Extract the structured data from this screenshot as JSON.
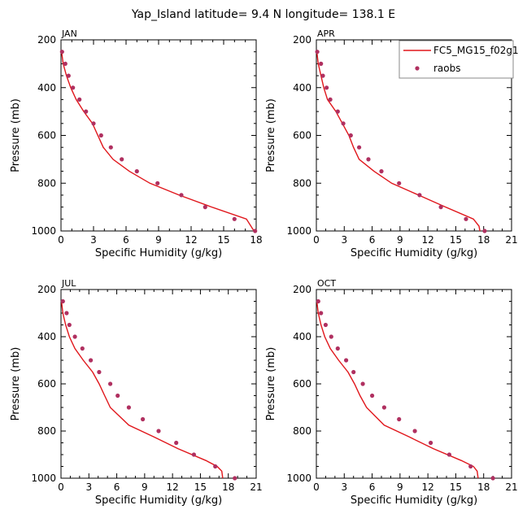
{
  "figure": {
    "title": "Yap_Island  latitude= 9.4 N longitude= 138.1 E"
  },
  "legend": {
    "placement": "top-right",
    "model_label": "FC5_MG15_f02g1",
    "obs_label": "raobs"
  },
  "colors": {
    "model": "#e0161b",
    "obs": "#b03060",
    "axis": "#000000"
  },
  "chart_data": [
    {
      "type": "line",
      "title": "JAN",
      "xlabel": "Specific Humidity (g/kg)",
      "ylabel": "Pressure (mb)",
      "xlim": [
        0,
        18
      ],
      "xticks": [
        0,
        3,
        6,
        9,
        12,
        15,
        18
      ],
      "ylim": [
        1000,
        200
      ],
      "yticks": [
        200,
        400,
        600,
        800,
        1000
      ],
      "series": [
        {
          "values": [
            [
              0.05,
              250
            ],
            [
              0.2,
              300
            ],
            [
              0.5,
              350
            ],
            [
              0.9,
              400
            ],
            [
              1.4,
              450
            ],
            [
              2.1,
              500
            ],
            [
              2.9,
              550
            ],
            [
              3.4,
              600
            ],
            [
              3.9,
              650
            ],
            [
              4.8,
              700
            ],
            [
              6.3,
              750
            ],
            [
              8.2,
              800
            ],
            [
              10.9,
              850
            ],
            [
              13.9,
              900
            ],
            [
              17.1,
              950
            ],
            [
              17.8,
              1000
            ]
          ]
        },
        {
          "values": [
            [
              0.1,
              250
            ],
            [
              0.4,
              300
            ],
            [
              0.7,
              350
            ],
            [
              1.1,
              400
            ],
            [
              1.7,
              450
            ],
            [
              2.3,
              500
            ],
            [
              3.0,
              550
            ],
            [
              3.7,
              600
            ],
            [
              4.6,
              650
            ],
            [
              5.6,
              700
            ],
            [
              7.0,
              750
            ],
            [
              8.9,
              800
            ],
            [
              11.1,
              850
            ],
            [
              13.3,
              900
            ],
            [
              16.0,
              950
            ],
            [
              17.9,
              1000
            ]
          ]
        }
      ]
    },
    {
      "type": "line",
      "title": "APR",
      "xlabel": "Specific Humidity (g/kg)",
      "ylabel": "Pressure (mb)",
      "xlim": [
        0,
        21
      ],
      "xticks": [
        0,
        3,
        6,
        9,
        12,
        15,
        18,
        21
      ],
      "ylim": [
        1000,
        200
      ],
      "yticks": [
        200,
        400,
        600,
        800,
        1000
      ],
      "series": [
        {
          "values": [
            [
              0.05,
              250
            ],
            [
              0.2,
              300
            ],
            [
              0.5,
              350
            ],
            [
              0.8,
              400
            ],
            [
              1.2,
              450
            ],
            [
              2.1,
              500
            ],
            [
              2.8,
              550
            ],
            [
              3.5,
              600
            ],
            [
              4.0,
              650
            ],
            [
              4.6,
              700
            ],
            [
              6.2,
              750
            ],
            [
              8.1,
              800
            ],
            [
              11.0,
              850
            ],
            [
              13.9,
              900
            ],
            [
              16.9,
              950
            ],
            [
              17.5,
              980
            ],
            [
              17.6,
              1000
            ]
          ]
        },
        {
          "values": [
            [
              0.1,
              250
            ],
            [
              0.5,
              300
            ],
            [
              0.7,
              350
            ],
            [
              1.1,
              400
            ],
            [
              1.5,
              450
            ],
            [
              2.3,
              500
            ],
            [
              2.9,
              550
            ],
            [
              3.7,
              600
            ],
            [
              4.6,
              650
            ],
            [
              5.6,
              700
            ],
            [
              7.0,
              750
            ],
            [
              8.9,
              800
            ],
            [
              11.1,
              850
            ],
            [
              13.4,
              900
            ],
            [
              16.1,
              950
            ],
            [
              18.1,
              1000
            ]
          ]
        }
      ]
    },
    {
      "type": "line",
      "title": "JUL",
      "xlabel": "Specific Humidity (g/kg)",
      "ylabel": "Pressure (mb)",
      "xlim": [
        0,
        21
      ],
      "xticks": [
        0,
        3,
        6,
        9,
        12,
        15,
        18,
        21
      ],
      "ylim": [
        1000,
        200
      ],
      "yticks": [
        200,
        400,
        600,
        800,
        1000
      ],
      "series": [
        {
          "values": [
            [
              0.05,
              250
            ],
            [
              0.2,
              300
            ],
            [
              0.5,
              350
            ],
            [
              0.9,
              400
            ],
            [
              1.5,
              450
            ],
            [
              2.4,
              500
            ],
            [
              3.4,
              550
            ],
            [
              4.1,
              600
            ],
            [
              4.7,
              650
            ],
            [
              5.3,
              700
            ],
            [
              7.3,
              775
            ],
            [
              10.0,
              825
            ],
            [
              12.6,
              875
            ],
            [
              15.6,
              925
            ],
            [
              16.8,
              950
            ],
            [
              17.3,
              970
            ],
            [
              17.4,
              1000
            ]
          ]
        },
        {
          "values": [
            [
              0.2,
              250
            ],
            [
              0.6,
              300
            ],
            [
              0.9,
              350
            ],
            [
              1.5,
              400
            ],
            [
              2.3,
              450
            ],
            [
              3.2,
              500
            ],
            [
              4.1,
              550
            ],
            [
              5.3,
              600
            ],
            [
              6.1,
              650
            ],
            [
              7.3,
              700
            ],
            [
              8.8,
              750
            ],
            [
              10.5,
              800
            ],
            [
              12.4,
              850
            ],
            [
              14.3,
              900
            ],
            [
              16.6,
              950
            ],
            [
              18.7,
              1000
            ]
          ]
        }
      ]
    },
    {
      "type": "line",
      "title": "OCT",
      "xlabel": "Specific Humidity (g/kg)",
      "ylabel": "Pressure (mb)",
      "xlim": [
        0,
        21
      ],
      "xticks": [
        0,
        3,
        6,
        9,
        12,
        15,
        18,
        21
      ],
      "ylim": [
        1000,
        200
      ],
      "yticks": [
        200,
        400,
        600,
        800,
        1000
      ],
      "series": [
        {
          "values": [
            [
              0.05,
              250
            ],
            [
              0.2,
              300
            ],
            [
              0.5,
              350
            ],
            [
              0.9,
              400
            ],
            [
              1.5,
              450
            ],
            [
              2.4,
              500
            ],
            [
              3.4,
              550
            ],
            [
              4.1,
              600
            ],
            [
              4.7,
              650
            ],
            [
              5.4,
              700
            ],
            [
              7.3,
              775
            ],
            [
              10.0,
              825
            ],
            [
              12.6,
              875
            ],
            [
              15.6,
              925
            ],
            [
              16.9,
              950
            ],
            [
              17.3,
              970
            ],
            [
              17.4,
              1000
            ]
          ]
        },
        {
          "values": [
            [
              0.2,
              250
            ],
            [
              0.5,
              300
            ],
            [
              1.0,
              350
            ],
            [
              1.6,
              400
            ],
            [
              2.3,
              450
            ],
            [
              3.2,
              500
            ],
            [
              4.0,
              550
            ],
            [
              5.0,
              600
            ],
            [
              6.0,
              650
            ],
            [
              7.3,
              700
            ],
            [
              8.9,
              750
            ],
            [
              10.6,
              800
            ],
            [
              12.3,
              850
            ],
            [
              14.3,
              900
            ],
            [
              16.6,
              950
            ],
            [
              19.0,
              1000
            ]
          ]
        }
      ]
    }
  ]
}
